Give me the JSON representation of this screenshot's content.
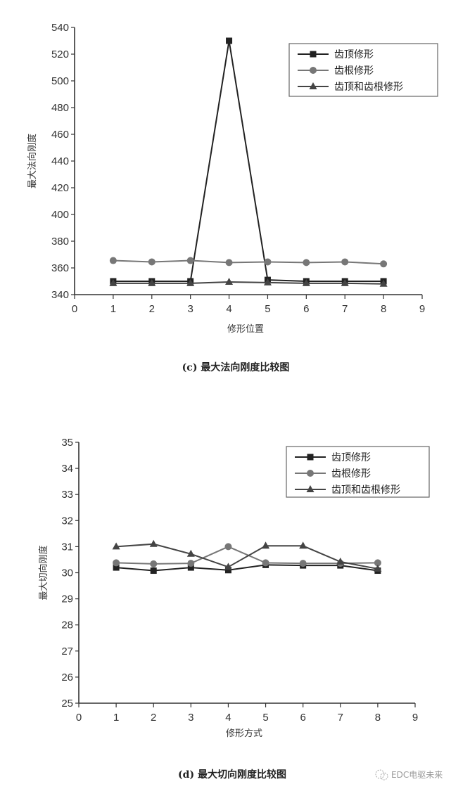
{
  "chart_data": [
    {
      "type": "line",
      "title": "(c) 最大法向刚度比较图",
      "xlabel": "修形位置",
      "ylabel": "最大法向刚度",
      "xlim": [
        0,
        9
      ],
      "ylim": [
        340,
        540
      ],
      "xticks": [
        0,
        1,
        2,
        3,
        4,
        5,
        6,
        7,
        8,
        9
      ],
      "yticks": [
        340,
        360,
        380,
        400,
        420,
        440,
        460,
        480,
        500,
        520,
        540
      ],
      "grid": false,
      "legend_position": "upper right",
      "x": [
        1,
        2,
        3,
        4,
        5,
        6,
        7,
        8
      ],
      "series": [
        {
          "name": "齿顶修形",
          "marker": "square",
          "color": "#222222",
          "values": [
            350,
            350,
            350,
            530,
            351,
            350,
            350,
            350
          ]
        },
        {
          "name": "齿根修形",
          "marker": "circle",
          "color": "#777777",
          "values": [
            365.5,
            364.5,
            365.5,
            364,
            364.5,
            364,
            364.5,
            363
          ]
        },
        {
          "name": "齿顶和齿根修形",
          "marker": "triangle",
          "color": "#444444",
          "values": [
            348.5,
            348.5,
            348.5,
            349.5,
            349,
            348.5,
            348.5,
            348
          ]
        }
      ]
    },
    {
      "type": "line",
      "title": "(d) 最大切向刚度比较图",
      "xlabel": "修形方式",
      "ylabel": "最大切向刚度",
      "xlim": [
        0,
        9
      ],
      "ylim": [
        25,
        35
      ],
      "xticks": [
        0,
        1,
        2,
        3,
        4,
        5,
        6,
        7,
        8,
        9
      ],
      "yticks": [
        25,
        26,
        27,
        28,
        29,
        30,
        31,
        32,
        33,
        34,
        35
      ],
      "grid": false,
      "legend_position": "upper right",
      "x": [
        1,
        2,
        3,
        4,
        5,
        6,
        7,
        8
      ],
      "series": [
        {
          "name": "齿顶修形",
          "marker": "square",
          "color": "#222222",
          "values": [
            30.2,
            30.08,
            30.2,
            30.1,
            30.3,
            30.28,
            30.28,
            30.08
          ]
        },
        {
          "name": "齿根修形",
          "marker": "circle",
          "color": "#777777",
          "values": [
            30.38,
            30.34,
            30.36,
            31.0,
            30.38,
            30.36,
            30.36,
            30.38
          ]
        },
        {
          "name": "齿顶和齿根修形",
          "marker": "triangle",
          "color": "#444444",
          "values": [
            31.0,
            31.1,
            30.72,
            30.22,
            31.03,
            31.03,
            30.42,
            30.15
          ]
        }
      ]
    }
  ],
  "watermark": {
    "text": "EDC电驱未来",
    "icon": "wechat-icon"
  }
}
